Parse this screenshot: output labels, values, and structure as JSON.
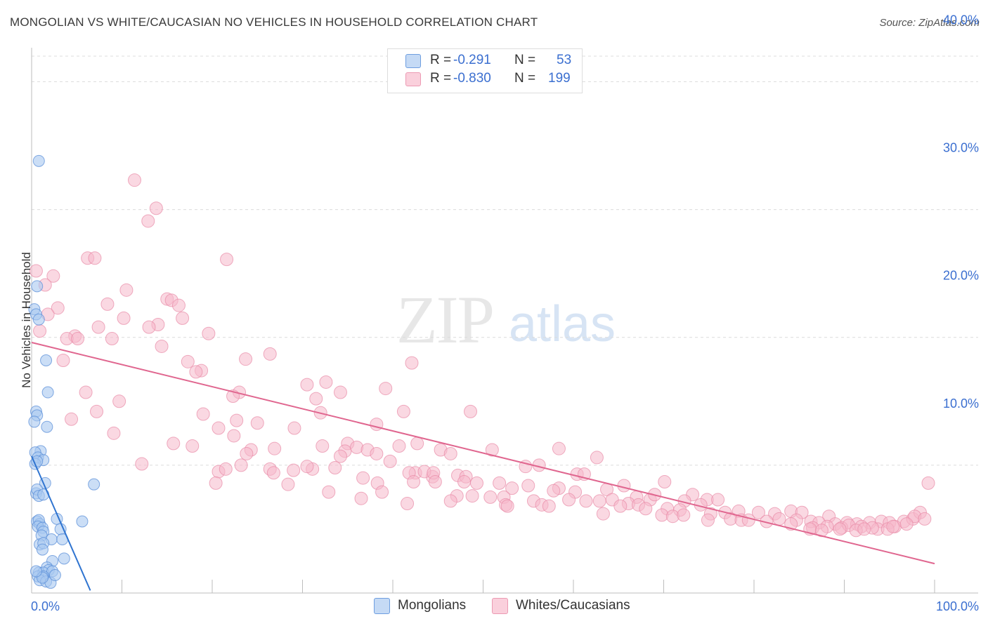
{
  "title": "MONGOLIAN VS WHITE/CAUCASIAN NO VEHICLES IN HOUSEHOLD CORRELATION CHART",
  "source": "Source: ZipAtlas.com",
  "watermark": {
    "zip": "ZIP",
    "atlas": "atlas"
  },
  "legend_top": {
    "rows": [
      {
        "r_label": "R =",
        "r_value": "-0.291",
        "n_label": "N =",
        "n_value": "53",
        "color": "#a8c8f0"
      },
      {
        "r_label": "R =",
        "r_value": "-0.830",
        "n_label": "N =",
        "n_value": "199",
        "color": "#f6b8cb"
      }
    ]
  },
  "legend_bottom": [
    {
      "label": "Mongolians",
      "color": "#a8c8f0"
    },
    {
      "label": "Whites/Caucasians",
      "color": "#f6b8cb"
    }
  ],
  "chart_data": {
    "type": "scatter",
    "title": "MONGOLIAN VS WHITE/CAUCASIAN NO VEHICLES IN HOUSEHOLD CORRELATION CHART",
    "xlabel": "",
    "ylabel": "No Vehicles in Household",
    "xlim": [
      0,
      100
    ],
    "ylim": [
      0,
      42
    ],
    "x_tick_labels": [
      "0.0%",
      "100.0%"
    ],
    "y_ticks": [
      10,
      20,
      30,
      40
    ],
    "y_tick_labels": [
      "10.0%",
      "20.0%",
      "30.0%",
      "40.0%"
    ],
    "grid": "horizontal dashed",
    "legend_position": "top-center",
    "colors": {
      "mongolians_fill": "#a8c8f0",
      "mongolians_stroke": "#5b8fd8",
      "mongolians_line": "#2f74d0",
      "whites_fill": "#f6b8cb",
      "whites_stroke": "#e88aa6",
      "whites_line": "#e0668f",
      "tick_label": "#3b6fd0"
    },
    "series": [
      {
        "name": "Mongolians",
        "r": -0.291,
        "n": 53,
        "trend": {
          "x": [
            0,
            6.5
          ],
          "y": [
            10.7,
            0.2
          ]
        },
        "points": [
          [
            0.8,
            33.8
          ],
          [
            0.6,
            24.0
          ],
          [
            0.3,
            22.2
          ],
          [
            0.5,
            21.8
          ],
          [
            0.8,
            21.4
          ],
          [
            1.6,
            18.2
          ],
          [
            1.8,
            15.7
          ],
          [
            0.5,
            14.2
          ],
          [
            0.6,
            13.9
          ],
          [
            0.3,
            13.4
          ],
          [
            1.7,
            13.0
          ],
          [
            1.0,
            11.1
          ],
          [
            0.4,
            11.0
          ],
          [
            0.7,
            10.6
          ],
          [
            1.3,
            10.4
          ],
          [
            0.4,
            10.1
          ],
          [
            0.6,
            10.3
          ],
          [
            6.9,
            8.5
          ],
          [
            1.5,
            8.6
          ],
          [
            0.5,
            7.8
          ],
          [
            0.6,
            8.1
          ],
          [
            0.8,
            7.6
          ],
          [
            1.3,
            7.7
          ],
          [
            0.6,
            5.6
          ],
          [
            0.9,
            5.4
          ],
          [
            0.8,
            5.7
          ],
          [
            2.8,
            5.8
          ],
          [
            5.6,
            5.6
          ],
          [
            0.7,
            5.2
          ],
          [
            1.2,
            5.1
          ],
          [
            1.3,
            4.8
          ],
          [
            3.2,
            5.0
          ],
          [
            1.1,
            4.5
          ],
          [
            2.2,
            4.2
          ],
          [
            3.4,
            4.2
          ],
          [
            0.9,
            3.8
          ],
          [
            1.3,
            3.9
          ],
          [
            1.2,
            3.4
          ],
          [
            3.6,
            2.7
          ],
          [
            2.3,
            2.5
          ],
          [
            1.7,
            2.0
          ],
          [
            1.9,
            1.8
          ],
          [
            0.8,
            1.6
          ],
          [
            1.3,
            1.6
          ],
          [
            2.3,
            1.7
          ],
          [
            0.7,
            1.3
          ],
          [
            1.3,
            1.3
          ],
          [
            0.9,
            1.0
          ],
          [
            1.6,
            0.9
          ],
          [
            2.1,
            0.8
          ],
          [
            1.2,
            1.2
          ],
          [
            0.5,
            1.7
          ],
          [
            2.6,
            1.4
          ]
        ]
      },
      {
        "name": "Whites/Caucasians",
        "r": -0.83,
        "n": 199,
        "trend": {
          "x": [
            0,
            100
          ],
          "y": [
            19.6,
            2.3
          ]
        },
        "points": [
          [
            11.4,
            32.3
          ],
          [
            13.8,
            30.1
          ],
          [
            12.9,
            29.1
          ],
          [
            6.2,
            26.2
          ],
          [
            7.0,
            26.2
          ],
          [
            21.6,
            26.1
          ],
          [
            0.5,
            25.2
          ],
          [
            2.4,
            24.8
          ],
          [
            1.5,
            24.1
          ],
          [
            10.5,
            23.7
          ],
          [
            15.0,
            23.0
          ],
          [
            15.5,
            22.9
          ],
          [
            8.4,
            22.6
          ],
          [
            16.3,
            22.5
          ],
          [
            2.9,
            22.3
          ],
          [
            1.8,
            21.8
          ],
          [
            10.2,
            21.5
          ],
          [
            16.7,
            21.5
          ],
          [
            14.0,
            21.0
          ],
          [
            7.4,
            20.8
          ],
          [
            13.0,
            20.8
          ],
          [
            0.9,
            20.5
          ],
          [
            19.6,
            20.3
          ],
          [
            4.8,
            20.1
          ],
          [
            3.9,
            19.9
          ],
          [
            5.1,
            19.9
          ],
          [
            8.9,
            19.9
          ],
          [
            14.4,
            19.3
          ],
          [
            26.4,
            18.7
          ],
          [
            3.5,
            18.2
          ],
          [
            17.3,
            18.1
          ],
          [
            23.7,
            18.3
          ],
          [
            42.1,
            18.0
          ],
          [
            18.8,
            17.4
          ],
          [
            18.2,
            17.3
          ],
          [
            32.6,
            16.5
          ],
          [
            30.5,
            16.3
          ],
          [
            39.2,
            16.0
          ],
          [
            6.0,
            15.7
          ],
          [
            34.2,
            15.7
          ],
          [
            23.0,
            15.7
          ],
          [
            22.3,
            15.4
          ],
          [
            31.5,
            15.2
          ],
          [
            9.7,
            15.0
          ],
          [
            7.2,
            14.2
          ],
          [
            41.2,
            14.2
          ],
          [
            32.0,
            14.1
          ],
          [
            19.0,
            14.0
          ],
          [
            48.6,
            14.2
          ],
          [
            4.4,
            13.6
          ],
          [
            22.7,
            13.5
          ],
          [
            25.0,
            13.3
          ],
          [
            38.2,
            13.2
          ],
          [
            20.7,
            12.9
          ],
          [
            29.1,
            12.9
          ],
          [
            9.1,
            12.5
          ],
          [
            22.4,
            12.3
          ],
          [
            15.7,
            11.7
          ],
          [
            17.8,
            11.5
          ],
          [
            35.0,
            11.7
          ],
          [
            32.2,
            11.5
          ],
          [
            40.7,
            11.5
          ],
          [
            42.7,
            11.7
          ],
          [
            34.7,
            11.1
          ],
          [
            26.9,
            11.3
          ],
          [
            36.0,
            11.4
          ],
          [
            37.2,
            11.2
          ],
          [
            24.3,
            11.2
          ],
          [
            51.0,
            11.2
          ],
          [
            58.4,
            11.3
          ],
          [
            45.3,
            11.2
          ],
          [
            23.8,
            10.9
          ],
          [
            38.2,
            10.9
          ],
          [
            34.2,
            10.7
          ],
          [
            46.4,
            10.9
          ],
          [
            39.7,
            10.3
          ],
          [
            12.2,
            10.1
          ],
          [
            20.7,
            9.5
          ],
          [
            21.5,
            9.7
          ],
          [
            26.4,
            9.7
          ],
          [
            31.1,
            9.7
          ],
          [
            33.6,
            9.8
          ],
          [
            42.5,
            9.4
          ],
          [
            44.4,
            9.1
          ],
          [
            54.7,
            9.9
          ],
          [
            56.2,
            10.0
          ],
          [
            47.2,
            9.2
          ],
          [
            62.6,
            10.6
          ],
          [
            41.8,
            9.4
          ],
          [
            43.5,
            9.5
          ],
          [
            44.5,
            9.4
          ],
          [
            48.1,
            9.1
          ],
          [
            29.0,
            9.6
          ],
          [
            23.2,
            10.0
          ],
          [
            26.8,
            9.4
          ],
          [
            30.5,
            9.9
          ],
          [
            36.7,
            9.0
          ],
          [
            47.9,
            8.7
          ],
          [
            51.8,
            8.6
          ],
          [
            58.4,
            8.2
          ],
          [
            60.4,
            9.3
          ],
          [
            61.2,
            9.3
          ],
          [
            65.6,
            8.4
          ],
          [
            70.1,
            8.7
          ],
          [
            20.4,
            8.6
          ],
          [
            28.4,
            8.5
          ],
          [
            38.3,
            8.6
          ],
          [
            42.3,
            8.7
          ],
          [
            44.7,
            8.7
          ],
          [
            49.3,
            8.6
          ],
          [
            53.2,
            8.2
          ],
          [
            55.0,
            8.4
          ],
          [
            57.8,
            8.0
          ],
          [
            60.2,
            7.9
          ],
          [
            63.7,
            8.1
          ],
          [
            67.0,
            7.5
          ],
          [
            68.5,
            7.3
          ],
          [
            69.0,
            7.7
          ],
          [
            73.2,
            7.7
          ],
          [
            32.9,
            7.9
          ],
          [
            38.8,
            7.9
          ],
          [
            47.1,
            7.6
          ],
          [
            48.8,
            7.6
          ],
          [
            50.8,
            7.5
          ],
          [
            52.3,
            7.5
          ],
          [
            55.6,
            7.2
          ],
          [
            59.5,
            7.3
          ],
          [
            61.4,
            7.2
          ],
          [
            62.9,
            7.2
          ],
          [
            64.3,
            7.3
          ],
          [
            66.1,
            7.0
          ],
          [
            67.2,
            6.9
          ],
          [
            72.3,
            7.2
          ],
          [
            74.8,
            7.3
          ],
          [
            36.5,
            7.4
          ],
          [
            46.4,
            7.2
          ],
          [
            52.5,
            6.9
          ],
          [
            56.5,
            6.9
          ],
          [
            65.2,
            6.8
          ],
          [
            68.0,
            6.6
          ],
          [
            70.4,
            6.6
          ],
          [
            71.8,
            6.5
          ],
          [
            74.1,
            6.9
          ],
          [
            76.0,
            7.3
          ],
          [
            41.6,
            7.0
          ],
          [
            52.7,
            6.8
          ],
          [
            57.3,
            6.8
          ],
          [
            63.3,
            6.2
          ],
          [
            69.8,
            6.1
          ],
          [
            71.0,
            6.0
          ],
          [
            72.2,
            6.1
          ],
          [
            75.2,
            6.2
          ],
          [
            76.8,
            6.3
          ],
          [
            78.3,
            6.4
          ],
          [
            80.5,
            6.3
          ],
          [
            82.3,
            6.2
          ],
          [
            84.1,
            6.4
          ],
          [
            85.3,
            6.3
          ],
          [
            88.3,
            6.0
          ],
          [
            74.9,
            5.7
          ],
          [
            77.4,
            5.8
          ],
          [
            78.6,
            5.7
          ],
          [
            79.4,
            5.7
          ],
          [
            81.4,
            5.6
          ],
          [
            82.8,
            5.8
          ],
          [
            84.7,
            5.7
          ],
          [
            86.3,
            5.6
          ],
          [
            87.2,
            5.5
          ],
          [
            89.0,
            5.4
          ],
          [
            90.3,
            5.5
          ],
          [
            91.4,
            5.4
          ],
          [
            92.8,
            5.5
          ],
          [
            94.1,
            5.6
          ],
          [
            95.0,
            5.5
          ],
          [
            96.6,
            5.6
          ],
          [
            97.6,
            5.8
          ],
          [
            98.4,
            6.3
          ],
          [
            97.8,
            6.0
          ],
          [
            99.3,
            8.6
          ],
          [
            84.1,
            5.4
          ],
          [
            86.5,
            5.1
          ],
          [
            88.1,
            5.2
          ],
          [
            89.7,
            5.1
          ],
          [
            90.5,
            5.3
          ],
          [
            91.9,
            5.2
          ],
          [
            93.7,
            5.0
          ],
          [
            95.6,
            5.2
          ],
          [
            96.9,
            5.4
          ],
          [
            98.9,
            5.8
          ],
          [
            86.2,
            5.0
          ],
          [
            87.5,
            4.9
          ],
          [
            89.5,
            5.0
          ],
          [
            91.3,
            4.9
          ],
          [
            93.1,
            5.1
          ],
          [
            94.8,
            5.0
          ],
          [
            92.2,
            5.0
          ],
          [
            95.4,
            5.2
          ]
        ]
      }
    ]
  }
}
